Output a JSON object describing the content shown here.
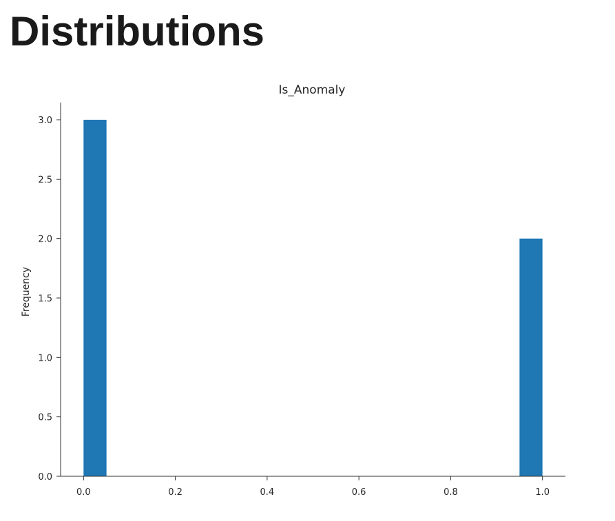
{
  "page": {
    "heading": "Distributions"
  },
  "chart_data": {
    "type": "bar",
    "title": "Is_Anomaly",
    "xlabel": "",
    "ylabel": "Frequency",
    "xlim": [
      -0.05,
      1.05
    ],
    "ylim": [
      0,
      3.15
    ],
    "x_ticks": [
      "0.0",
      "0.2",
      "0.4",
      "0.6",
      "0.8",
      "1.0"
    ],
    "y_ticks": [
      "0.0",
      "0.5",
      "1.0",
      "1.5",
      "2.0",
      "2.5",
      "3.0"
    ],
    "bins": [
      {
        "x_start": 0.0,
        "x_end": 0.05,
        "value": 3
      },
      {
        "x_start": 0.05,
        "x_end": 0.1,
        "value": 0
      },
      {
        "x_start": 0.1,
        "x_end": 0.15,
        "value": 0
      },
      {
        "x_start": 0.15,
        "x_end": 0.2,
        "value": 0
      },
      {
        "x_start": 0.2,
        "x_end": 0.25,
        "value": 0
      },
      {
        "x_start": 0.25,
        "x_end": 0.3,
        "value": 0
      },
      {
        "x_start": 0.3,
        "x_end": 0.35,
        "value": 0
      },
      {
        "x_start": 0.35,
        "x_end": 0.4,
        "value": 0
      },
      {
        "x_start": 0.4,
        "x_end": 0.45,
        "value": 0
      },
      {
        "x_start": 0.45,
        "x_end": 0.5,
        "value": 0
      },
      {
        "x_start": 0.5,
        "x_end": 0.55,
        "value": 0
      },
      {
        "x_start": 0.55,
        "x_end": 0.6,
        "value": 0
      },
      {
        "x_start": 0.6,
        "x_end": 0.65,
        "value": 0
      },
      {
        "x_start": 0.65,
        "x_end": 0.7,
        "value": 0
      },
      {
        "x_start": 0.7,
        "x_end": 0.75,
        "value": 0
      },
      {
        "x_start": 0.75,
        "x_end": 0.8,
        "value": 0
      },
      {
        "x_start": 0.8,
        "x_end": 0.85,
        "value": 0
      },
      {
        "x_start": 0.85,
        "x_end": 0.9,
        "value": 0
      },
      {
        "x_start": 0.9,
        "x_end": 0.95,
        "value": 0
      },
      {
        "x_start": 0.95,
        "x_end": 1.0,
        "value": 2
      }
    ],
    "bar_color": "#1f77b4",
    "grid": false,
    "spines": "left-bottom"
  }
}
